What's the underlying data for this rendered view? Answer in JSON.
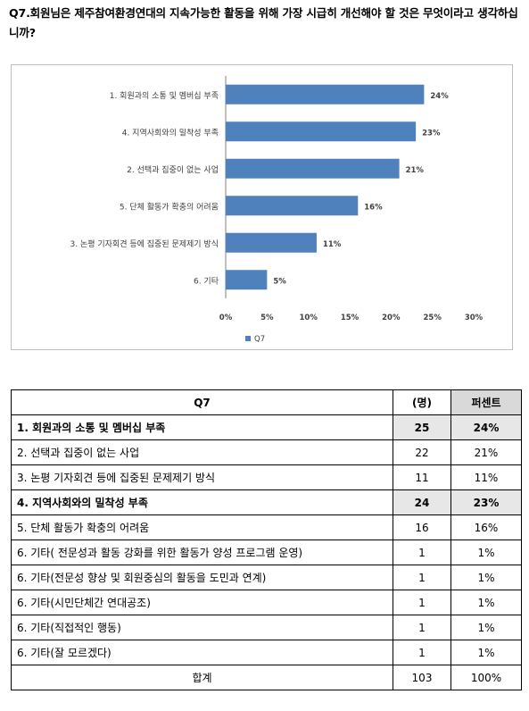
{
  "question": "Q7.회원님은 제주참여환경연대의 지속가능한 활동을 위해 가장 시급히 개선해야 할 것은 무엇이라고 생각하십니까?",
  "colors": {
    "bar": "#4f81bd",
    "grid": "#d9d9d9",
    "highlight": "#e7e7e7"
  },
  "chart_data": {
    "type": "bar",
    "orientation": "horizontal",
    "categories": [
      "1. 회원과의 소통 및 멤버십 부족",
      "4. 지역사회와의 밀착성 부족",
      "2. 선택과 집중이 없는 사업",
      "5. 단체 활동가 확충의 어려움",
      "3. 논평 기자회견 등에 집중된 문제제기 방식",
      "6. 기타"
    ],
    "series": [
      {
        "name": "Q7",
        "values": [
          24,
          23,
          21,
          16,
          11,
          5
        ]
      }
    ],
    "value_labels": [
      "24%",
      "23%",
      "21%",
      "16%",
      "11%",
      "5%"
    ],
    "x_ticks": [
      "0%",
      "5%",
      "10%",
      "15%",
      "20%",
      "25%",
      "30%"
    ],
    "xlim": [
      0,
      30
    ],
    "legend_position": "bottom-left",
    "grid": false
  },
  "table": {
    "headers": {
      "item": "Q7",
      "count": "(명)",
      "pct": "퍼센트"
    },
    "rows": [
      {
        "item": "1. 회원과의 소통 및 멤버십 부족",
        "count": "25",
        "pct": "24%",
        "hl": true
      },
      {
        "item": "2. 선택과 집중이 없는 사업",
        "count": "22",
        "pct": "21%",
        "hl": false
      },
      {
        "item": "3. 논평 기자회견 등에 집중된 문제제기 방식",
        "count": "11",
        "pct": "11%",
        "hl": false
      },
      {
        "item": "4. 지역사회와의 밀착성 부족",
        "count": "24",
        "pct": "23%",
        "hl": true
      },
      {
        "item": "5. 단체 활동가 확충의 어려움",
        "count": "16",
        "pct": "16%",
        "hl": false
      },
      {
        "item": "6. 기타(          전문성과 활동 강화를 위한 활동가 양성 프로그램 운영)",
        "count": "1",
        "pct": "1%",
        "hl": false
      },
      {
        "item": "6. 기타(전문성 향상 및 회원중심의 활동을 도민과 연계)",
        "count": "1",
        "pct": "1%",
        "hl": false
      },
      {
        "item": "6. 기타(시민단체간 연대공조)",
        "count": "1",
        "pct": "1%",
        "hl": false
      },
      {
        "item": "6. 기타(직접적인 행동)",
        "count": "1",
        "pct": "1%",
        "hl": false
      },
      {
        "item": "6. 기타(잘 모르겠다)",
        "count": "1",
        "pct": "1%",
        "hl": false
      }
    ],
    "total": {
      "label": "합계",
      "count": "103",
      "pct": "100%"
    }
  }
}
